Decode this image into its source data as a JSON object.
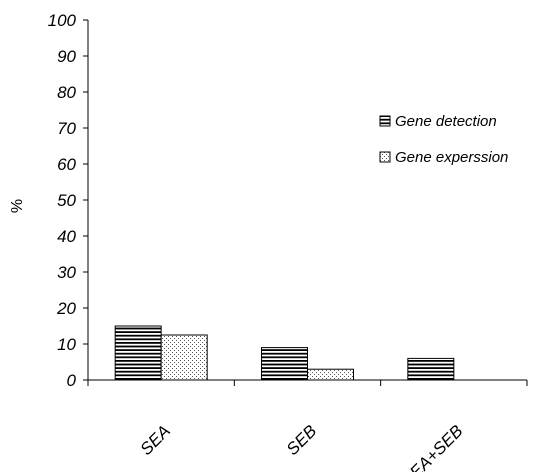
{
  "chart_data": {
    "type": "bar",
    "title": "",
    "xlabel": "",
    "ylabel": "%",
    "ylim": [
      0,
      100
    ],
    "yticks": [
      0,
      10,
      20,
      30,
      40,
      50,
      60,
      70,
      80,
      90,
      100
    ],
    "categories": [
      "SEA",
      "SEB",
      "SEA+SEB"
    ],
    "series": [
      {
        "name": "Gene detection",
        "values": [
          15,
          9,
          6
        ],
        "pattern": "horizontal-stripes"
      },
      {
        "name": "Gene experssion",
        "values": [
          12.5,
          3,
          0
        ],
        "pattern": "dots"
      }
    ],
    "grid": false,
    "legend": "right"
  }
}
